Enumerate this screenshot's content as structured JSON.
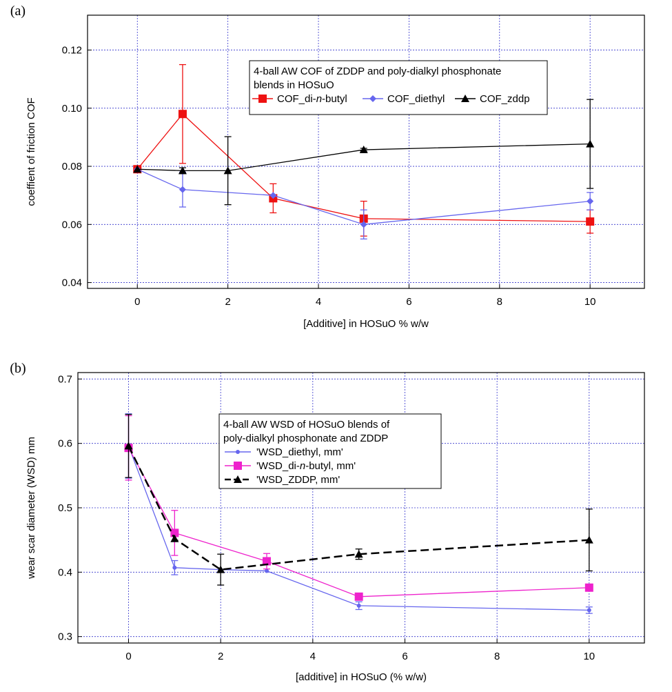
{
  "chart_data": [
    {
      "type": "line",
      "panel_label": "(a)",
      "xlabel": "[Additive] in HOSuO % w/w",
      "ylabel": "coeffient of friction COF",
      "xlim": [
        -1.1,
        11.2
      ],
      "ylim": [
        0.038,
        0.132
      ],
      "xticks": [
        0,
        2,
        4,
        6,
        8,
        10
      ],
      "xtick_labels": [
        "0",
        "2",
        "4",
        "6",
        "8",
        "10"
      ],
      "yticks": [
        0.04,
        0.06,
        0.08,
        0.1,
        0.12
      ],
      "ytick_labels": [
        "0.04",
        "0.06",
        "0.08",
        "0.10",
        "0.12"
      ],
      "grid": true,
      "legend": {
        "position": "top-right",
        "title_lines": [
          "4-ball AW COF of ZDDP and poly-dialkyl phosphonate",
          "blends in HOSuO"
        ]
      },
      "series": [
        {
          "name": "COF_di-n-butyl",
          "label_prefix": "COF_di-",
          "label_italic": "n",
          "label_suffix": "-butyl",
          "color": "#ee1111",
          "marker": "square",
          "dash": false,
          "x": [
            0,
            1,
            3,
            5,
            10
          ],
          "y": [
            0.079,
            0.098,
            0.069,
            0.062,
            0.061
          ],
          "err": [
            0,
            0.017,
            0.005,
            0.006,
            0.004
          ]
        },
        {
          "name": "COF_diethyl",
          "color": "#6666ee",
          "marker": "diamond",
          "dash": false,
          "x": [
            0,
            1,
            3,
            5,
            10
          ],
          "y": [
            0.079,
            0.072,
            0.07,
            0.06,
            0.068
          ],
          "err": [
            0,
            0.006,
            0,
            0.005,
            0.003
          ]
        },
        {
          "name": "COF_zddp",
          "color": "#000000",
          "marker": "triangle",
          "dash": false,
          "x": [
            0,
            1,
            2,
            5,
            10
          ],
          "y": [
            0.079,
            0.0785,
            0.0785,
            0.0857,
            0.0877
          ],
          "err": [
            0,
            0.001,
            0.0117,
            0.0005,
            0.0153
          ]
        }
      ]
    },
    {
      "type": "line",
      "panel_label": "(b)",
      "xlabel": "[additive] in HOSuO (% w/w)",
      "ylabel": "wear scar diameter (WSD) mm",
      "xlim": [
        -1.1,
        11.2
      ],
      "ylim": [
        0.29,
        0.71
      ],
      "xticks": [
        0,
        2,
        4,
        6,
        8,
        10
      ],
      "xtick_labels": [
        "0",
        "2",
        "4",
        "6",
        "8",
        "10"
      ],
      "yticks": [
        0.3,
        0.4,
        0.5,
        0.6,
        0.7
      ],
      "ytick_labels": [
        "0.3",
        "0.4",
        "0.5",
        "0.6",
        "0.7"
      ],
      "grid": true,
      "legend": {
        "position": "top-center",
        "title_lines": [
          "4-ball AW WSD of HOSuO blends of",
          "poly-dialkyl phosphonate and ZDDP"
        ]
      },
      "series": [
        {
          "name": "'WSD_diethyl, mm'",
          "color": "#6666ee",
          "marker": "circle",
          "dash": false,
          "x": [
            0,
            1,
            2,
            3,
            5,
            10
          ],
          "y": [
            0.596,
            0.407,
            0.404,
            0.402,
            0.348,
            0.341
          ],
          "err": [
            0.05,
            0.011,
            0,
            0,
            0.006,
            0.005
          ]
        },
        {
          "name": "'WSD_di-n-butyl, mm'",
          "label_prefix": "'WSD_di-",
          "label_italic": "n",
          "label_suffix": "-butyl, mm'",
          "color": "#ee22cc",
          "marker": "square",
          "dash": false,
          "x": [
            0,
            1,
            3,
            5,
            10
          ],
          "y": [
            0.593,
            0.461,
            0.417,
            0.362,
            0.376
          ],
          "err": [
            0.05,
            0.035,
            0.012,
            0,
            0
          ]
        },
        {
          "name": "'WSD_ZDDP, mm'",
          "color": "#000000",
          "marker": "triangle",
          "dash": true,
          "x": [
            0,
            1,
            2,
            5,
            10
          ],
          "y": [
            0.596,
            0.452,
            0.404,
            0.428,
            0.45
          ],
          "err": [
            0.049,
            0,
            0.024,
            0.008,
            0.048
          ]
        }
      ]
    }
  ]
}
